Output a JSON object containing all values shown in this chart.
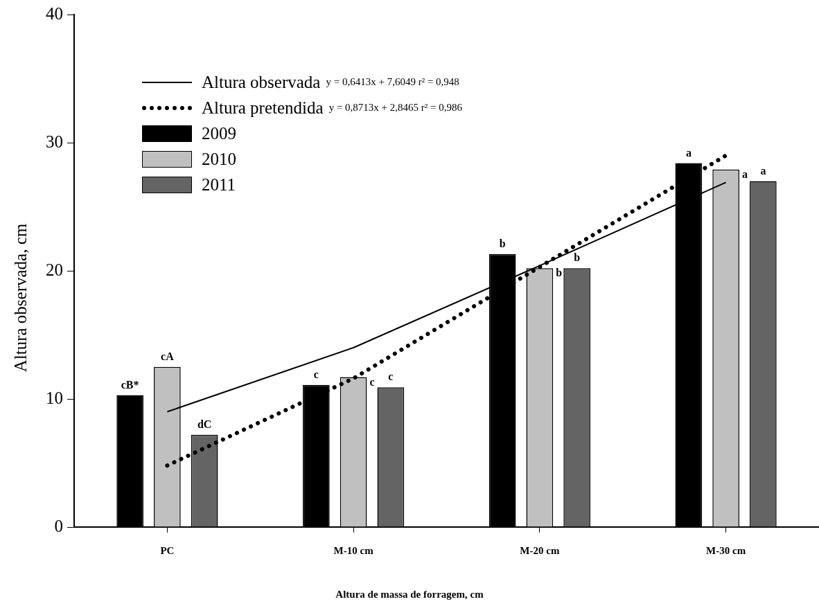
{
  "chart_data": {
    "type": "bar",
    "xlabel": "Altura de massa de forragem, cm",
    "ylabel": "Altura observada, cm",
    "categories": [
      "PC",
      "M-10 cm",
      "M-20 cm",
      "M-30 cm"
    ],
    "ylim": [
      0,
      40
    ],
    "yticks": [
      0,
      10,
      20,
      30,
      40
    ],
    "series": [
      {
        "name": "Altura observada",
        "type": "line",
        "line_style": "solid",
        "color": "#000000",
        "values": [
          9.0,
          14.0,
          20.4,
          26.9
        ]
      },
      {
        "name": "Altura pretendida",
        "type": "line",
        "line_style": "dotted",
        "color": "#000000",
        "values": [
          4.8,
          11.6,
          20.3,
          29.0
        ]
      },
      {
        "name": "2009",
        "color": "#000000",
        "values": [
          10.3,
          11.1,
          21.3,
          28.4
        ],
        "value_labels": [
          "cB*",
          "c",
          "b",
          "a"
        ]
      },
      {
        "name": "2010",
        "color": "#c0c0c0",
        "values": [
          12.5,
          11.7,
          20.2,
          27.9
        ],
        "value_labels": [
          "cA",
          "c",
          "b",
          "a"
        ]
      },
      {
        "name": "2011",
        "color": "#646464",
        "values": [
          7.2,
          10.9,
          20.2,
          27.0
        ],
        "value_labels": [
          "dC",
          "c",
          "b",
          "a"
        ]
      }
    ],
    "annotations": [
      "y = 0,6413x + 7,6049 r² = 0,948",
      "y = 0,8713x + 2,8465 r² = 0,986"
    ],
    "legend": "top left",
    "grid": false
  }
}
